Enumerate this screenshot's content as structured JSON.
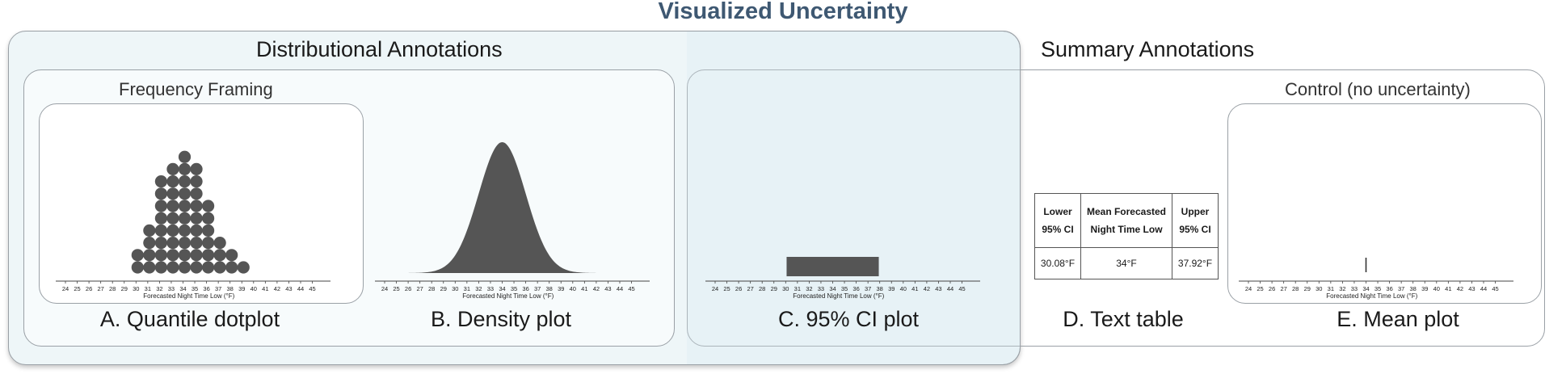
{
  "title": "Visualized Uncertainty",
  "sections": {
    "distributional": "Distributional Annotations",
    "summary": "Summary Annotations",
    "frequency": "Frequency Framing",
    "control": "Control (no uncertainty)"
  },
  "captions": {
    "a": "A. Quantile dotplot",
    "b": "B. Density plot",
    "c": "C. 95% CI plot",
    "d": "D. Text table",
    "e": "E. Mean plot"
  },
  "axis": {
    "label": "Forecasted Night Time Low (°F)",
    "ticks": [
      "24",
      "25",
      "26",
      "27",
      "28",
      "29",
      "30",
      "31",
      "32",
      "33",
      "34",
      "35",
      "36",
      "37",
      "38",
      "39",
      "40",
      "41",
      "42",
      "43",
      "44",
      "45"
    ]
  },
  "table": {
    "headers": [
      [
        "Lower",
        "95% CI"
      ],
      [
        "Mean Forecasted",
        "Night Time Low"
      ],
      [
        "Upper",
        "95% CI"
      ]
    ],
    "values": [
      "30.08°F",
      "34°F",
      "37.92°F"
    ]
  },
  "chart_data": [
    {
      "type": "scatter",
      "subtype": "dotplot",
      "x": [
        30,
        31,
        32,
        33,
        34,
        35,
        36,
        37,
        38,
        39
      ],
      "counts": [
        2,
        4,
        8,
        9,
        10,
        9,
        6,
        3,
        2,
        1
      ],
      "xlim": [
        24,
        45
      ],
      "xlabel": "Forecasted Night Time Low (°F)"
    },
    {
      "type": "area",
      "subtype": "density",
      "mean": 34,
      "sd": 2,
      "xlim": [
        24,
        45
      ],
      "xlabel": "Forecasted Night Time Low (°F)"
    },
    {
      "type": "bar",
      "subtype": "interval",
      "lower": 30.08,
      "upper": 37.92,
      "xlim": [
        24,
        45
      ],
      "xlabel": "Forecasted Night Time Low (°F)"
    },
    {
      "type": "table",
      "lower": "30.08°F",
      "mean": "34°F",
      "upper": "37.92°F"
    },
    {
      "type": "scatter",
      "subtype": "mean-tick",
      "mean": 34,
      "xlim": [
        24,
        45
      ],
      "xlabel": "Forecasted Night Time Low (°F)"
    }
  ],
  "colors": {
    "title": "#3e5872",
    "mark": "#555555",
    "panel_bg": "#eef6f8"
  }
}
